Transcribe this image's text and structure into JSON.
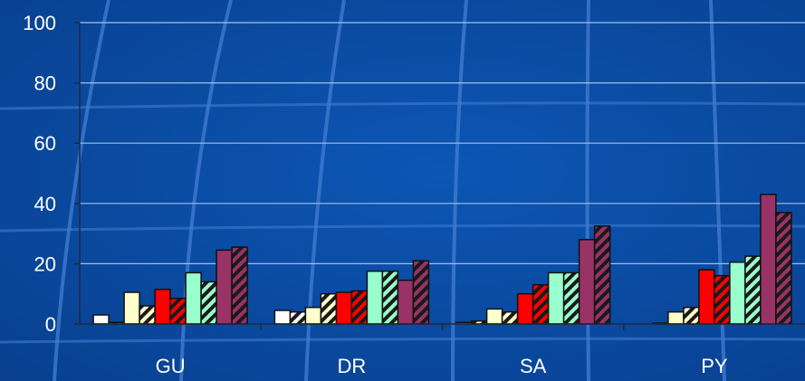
{
  "chart_data": {
    "type": "bar",
    "categories": [
      "GU",
      "DR",
      "SA",
      "PY"
    ],
    "ylim": [
      0,
      100
    ],
    "yticks": [
      "0",
      "20",
      "40",
      "60",
      "80",
      "100"
    ],
    "grid": true,
    "series": [
      {
        "color": "#ffffff",
        "pattern": "solid",
        "values": [
          3,
          4.5,
          0.5,
          0
        ]
      },
      {
        "color": "#ffffff",
        "pattern": "hatch",
        "values": [
          0.5,
          4,
          1,
          0.3
        ]
      },
      {
        "color": "#ffffcc",
        "pattern": "solid",
        "values": [
          10.5,
          5.5,
          5,
          4
        ]
      },
      {
        "color": "#ffffcc",
        "pattern": "hatch",
        "values": [
          6,
          10,
          4,
          5.5
        ]
      },
      {
        "color": "#ff0000",
        "pattern": "solid",
        "values": [
          11.5,
          10.5,
          10,
          18
        ]
      },
      {
        "color": "#ff0000",
        "pattern": "hatch",
        "values": [
          8.5,
          11,
          13,
          16
        ]
      },
      {
        "color": "#99ffcc",
        "pattern": "solid",
        "values": [
          17,
          17.5,
          17,
          20.5
        ]
      },
      {
        "color": "#99ffcc",
        "pattern": "hatch",
        "values": [
          14,
          17.5,
          17,
          22.5
        ]
      },
      {
        "color": "#993366",
        "pattern": "solid",
        "values": [
          24.5,
          14.5,
          28,
          43
        ]
      },
      {
        "color": "#993366",
        "pattern": "hatch",
        "values": [
          25.5,
          21,
          32.5,
          37
        ]
      }
    ],
    "colors": {
      "background": "#0a4aa0",
      "grid": "#9fc0ea",
      "axis": "#1e2a40",
      "text": "#ffffff"
    }
  }
}
